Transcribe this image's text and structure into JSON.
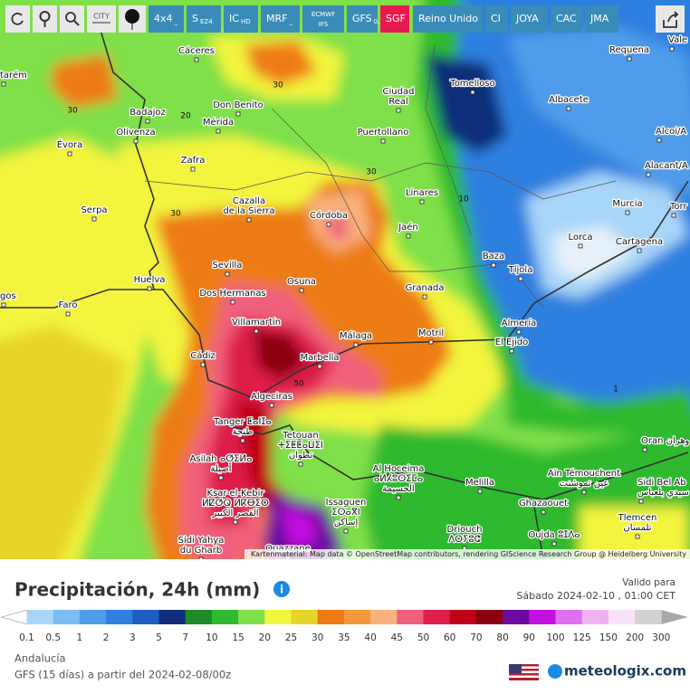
{
  "toolbar": {
    "city_label": "CITY",
    "buttons": [
      {
        "main": "4x4",
        "sub": "_"
      },
      {
        "main": "S",
        "sub": "EZ4"
      },
      {
        "main": "IC",
        "sub": "HD"
      },
      {
        "main": "MRF",
        "sub": "_"
      },
      {
        "main": "ECMWF",
        "sub": "IFS"
      },
      {
        "main": "GFS",
        "sub": "0,125"
      },
      {
        "main": "SGF",
        "color": "#e8194f"
      },
      {
        "main": "Reino Unido"
      },
      {
        "main": "CI"
      },
      {
        "main": "JOYA"
      },
      {
        "main": "CAC"
      },
      {
        "main": "JMA"
      }
    ]
  },
  "map": {
    "cities": [
      {
        "lines": [
          "tarém"
        ]
      },
      {
        "lines": [
          "Cáceres"
        ]
      },
      {
        "lines": [
          "Requena"
        ]
      },
      {
        "lines": [
          "Vale"
        ]
      },
      {
        "lines": [
          "Tomelloso"
        ]
      },
      {
        "lines": [
          "Ciudad",
          "Real"
        ]
      },
      {
        "lines": [
          "Albacete"
        ]
      },
      {
        "lines": [
          "Don Benito"
        ]
      },
      {
        "lines": [
          "Badajoz"
        ]
      },
      {
        "lines": [
          "Mérida"
        ]
      },
      {
        "lines": [
          "Olivenza"
        ]
      },
      {
        "lines": [
          "Puertollano"
        ]
      },
      {
        "lines": [
          "Alcoi/A"
        ]
      },
      {
        "lines": [
          "Évora"
        ]
      },
      {
        "lines": [
          "Zafra"
        ]
      },
      {
        "lines": [
          "Alacant/A"
        ]
      },
      {
        "lines": [
          "Linares"
        ]
      },
      {
        "lines": [
          "Cazalla",
          "de la Sierra"
        ]
      },
      {
        "lines": [
          "Murcia"
        ]
      },
      {
        "lines": [
          "Serpa"
        ]
      },
      {
        "lines": [
          "Córdoba"
        ]
      },
      {
        "lines": [
          "Torr"
        ]
      },
      {
        "lines": [
          "Jaén"
        ]
      },
      {
        "lines": [
          "Lorca"
        ]
      },
      {
        "lines": [
          "Cartagena"
        ]
      },
      {
        "lines": [
          "Baza"
        ]
      },
      {
        "lines": [
          "Tíjola"
        ]
      },
      {
        "lines": [
          "Sevilla"
        ]
      },
      {
        "lines": [
          "Huelva"
        ]
      },
      {
        "lines": [
          "Osuna"
        ]
      },
      {
        "lines": [
          "Granada"
        ]
      },
      {
        "lines": [
          "Dos Hermanas"
        ]
      },
      {
        "lines": [
          "Faro"
        ]
      },
      {
        "lines": [
          "gos"
        ]
      },
      {
        "lines": [
          "Almería"
        ]
      },
      {
        "lines": [
          "Villamartín"
        ]
      },
      {
        "lines": [
          "Málaga"
        ]
      },
      {
        "lines": [
          "Motril"
        ]
      },
      {
        "lines": [
          "El Ejido"
        ]
      },
      {
        "lines": [
          "Marbella"
        ]
      },
      {
        "lines": [
          "Cádiz"
        ]
      },
      {
        "lines": [
          "Algeciras"
        ]
      },
      {
        "lines": [
          "Tanger ⵟⴰⵏⵊⴰ",
          "طنجة"
        ]
      },
      {
        "lines": [
          "Tetouan",
          "ⵜⵉⵟⵟⴰⵡⵉⵏ",
          "تطوان"
        ]
      },
      {
        "lines": [
          "Oran وهران"
        ]
      },
      {
        "lines": [
          "Al Hoceima",
          "ⴰⵍⵃⵓⵙⵉⵎⴰ",
          "الحسيمة"
        ]
      },
      {
        "lines": [
          "Asilah ⴰⵚⵉⵍⴰ",
          "أصيلة"
        ]
      },
      {
        "lines": [
          "Aïn Témouchent",
          "عين تموشنت"
        ]
      },
      {
        "lines": [
          "Melilla"
        ]
      },
      {
        "lines": [
          "Sidi Bel Ab",
          "سيدي بلعباس"
        ]
      },
      {
        "lines": [
          "Ksar-el-Kebir",
          "ⵍⵇⵚⵕ ⵍⴽⴱⵉⵔ",
          "القصر الكبير"
        ]
      },
      {
        "lines": [
          "Issaguen",
          "ⵉⵙⴰⴳⵏ",
          "إساكن"
        ]
      },
      {
        "lines": [
          "Ghazaouet"
        ]
      },
      {
        "lines": [
          "Tlemcen",
          "تلمسان"
        ]
      },
      {
        "lines": [
          "Driouch",
          "ⴷⵔⵢⵓⵛ"
        ]
      },
      {
        "lines": [
          "Oujda ⵓⵊⴷⴰ"
        ]
      },
      {
        "lines": [
          "Sidi Yahya",
          "du Gharb"
        ]
      },
      {
        "lines": [
          "Ouazzane"
        ]
      }
    ],
    "contours": [
      "30",
      "30",
      "20",
      "30",
      "10",
      "30",
      "50",
      "1"
    ],
    "attribution": "Kartenmaterial: Map data © OpenStreetMap contributors, rendering GIScience Research Group @ Heidelberg University"
  },
  "header": {
    "title": "Precipitación, 24h (mm)",
    "valid_label": "Valido para",
    "valid_date": "Sábado 2024-02-10 , 01:00 CET"
  },
  "legend": {
    "ticks": [
      "0.1",
      "0.5",
      "1",
      "2",
      "3",
      "5",
      "7",
      "10",
      "15",
      "20",
      "25",
      "30",
      "35",
      "40",
      "45",
      "50",
      "60",
      "70",
      "80",
      "90",
      "100",
      "125",
      "150",
      "200",
      "300"
    ],
    "colors": [
      "#a8d6f8",
      "#7cbcf2",
      "#4f9cea",
      "#2f80e0",
      "#1c5fc2",
      "#0f2d78",
      "#1e8a28",
      "#2fb92f",
      "#7fe04a",
      "#f2f43e",
      "#e7d52a",
      "#ee7c12",
      "#f6993a",
      "#f8b27c",
      "#f0607c",
      "#dd1f4a",
      "#bf0018",
      "#8a000f",
      "#6b0a9e",
      "#c211e0",
      "#e06ef0",
      "#f0b2f0",
      "#f8e2f8",
      "#d2d2d2"
    ]
  },
  "footer": {
    "region": "Andalucía",
    "model": "GFS  (15 días)  a partir del 2024-02-08/00z",
    "site": "meteologix.com"
  }
}
